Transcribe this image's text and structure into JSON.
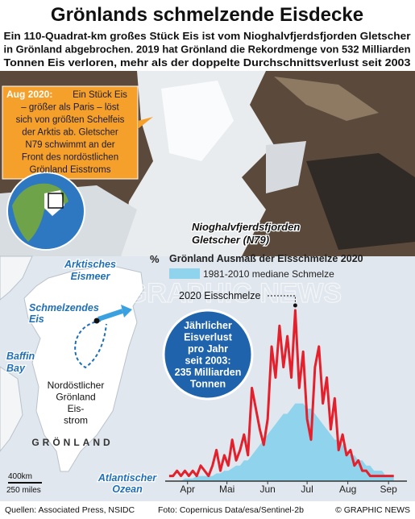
{
  "header": {
    "title": "Grönlands schmelzende Eisdecke",
    "subtitle_lines": [
      "Ein 110-Quadrat-km großes Stück Eis ist vom Nioghalvfjerdsfjorden Gletscher",
      "in Grönland abgebrochen. 2019 hat Grönland die Rekordmenge von  532 Milliarden",
      "Tonnen Eis verloren, mehr als der doppelte Durchschnittsverlust seit 2003"
    ]
  },
  "photo": {
    "callout_label": "Aug 2020:",
    "callout_lines": [
      "Ein Stück Eis",
      "– größer als Paris – löst",
      "sich von größten Schelfeis",
      "der Arktis ab. Gletscher",
      "N79 schwimmt an der",
      "Front des nordöstlichen",
      "Grönland Eisstroms"
    ],
    "glacier_lines": [
      "Nioghalvfjerdsfjorden",
      "Gletscher (N79)"
    ]
  },
  "map": {
    "arctic_lines": [
      "Arktisches",
      "Eismeer"
    ],
    "melting_lines": [
      "Schmelzendes",
      "Eis"
    ],
    "baffin_lines": [
      "Baffin",
      "Bay"
    ],
    "stream_lines": [
      "Nordöstlicher",
      "Grönland",
      "Eis-",
      "strom"
    ],
    "country": "GRÖNLAND",
    "atlantic_lines": [
      "Atlantischer",
      "Ozean"
    ],
    "scale_km": "400km",
    "scale_miles": "250 miles"
  },
  "chart_data": {
    "type": "line",
    "title": "Grönland Ausmaß der Eisschmelze 2020",
    "y_label": "%",
    "watermark": "GRAPHIC NEWS",
    "x": [
      91,
      94,
      97,
      100,
      103,
      106,
      109,
      112,
      115,
      118,
      121,
      124,
      127,
      130,
      133,
      136,
      139,
      142,
      145,
      148,
      151,
      154,
      157,
      160,
      163,
      166,
      169,
      172,
      175,
      178,
      181,
      184,
      187,
      190,
      193,
      196,
      199,
      202,
      205,
      208,
      211,
      214,
      217,
      220,
      223,
      226,
      229,
      232,
      235,
      238,
      241,
      244,
      247,
      250,
      253,
      256,
      259,
      262
    ],
    "xlim": [
      88,
      272
    ],
    "xticks": [
      {
        "value": 105,
        "label": "Apr"
      },
      {
        "value": 135,
        "label": "Mai"
      },
      {
        "value": 166,
        "label": "Jun"
      },
      {
        "value": 196,
        "label": "Jul"
      },
      {
        "value": 227,
        "label": "Aug"
      },
      {
        "value": 258,
        "label": "Sep"
      }
    ],
    "ylim": [
      0,
      40
    ],
    "series": [
      {
        "name": "1981-2010 mediane Schmelze",
        "color": "#8fd3ec",
        "style": "area",
        "values": [
          0,
          0,
          0,
          0,
          0.5,
          0.5,
          0.5,
          1,
          1,
          1,
          1,
          1,
          1.5,
          1.5,
          2,
          2,
          2.5,
          3,
          3,
          4,
          4,
          5,
          6,
          7,
          8,
          9,
          10,
          11,
          12,
          13,
          13,
          14,
          15,
          15,
          15,
          14,
          14,
          13,
          12,
          11,
          10,
          9,
          8,
          8,
          7,
          6,
          5,
          5,
          4,
          4,
          3,
          3,
          2,
          2,
          2,
          1,
          1,
          1
        ]
      },
      {
        "name": "2020 Eisschmelze",
        "color": "#e3202b",
        "style": "line",
        "values": [
          1,
          1,
          2,
          1,
          2,
          1,
          2,
          1,
          3,
          2,
          1,
          3,
          6,
          2,
          5,
          3,
          8,
          4,
          6,
          9,
          5,
          18,
          14,
          10,
          7,
          12,
          26,
          20,
          30,
          22,
          28,
          20,
          33,
          18,
          25,
          12,
          8,
          22,
          26,
          15,
          20,
          10,
          16,
          6,
          9,
          5,
          6,
          3,
          4,
          2,
          2,
          1,
          1,
          1,
          1,
          1,
          1,
          1
        ]
      }
    ],
    "bubble_lines": [
      "Jährlicher",
      "Eisverlust",
      "pro Jahr",
      "seit 2003:",
      "235 Milliarden",
      "Tonnen"
    ]
  },
  "footer": {
    "sources": "Quellen: Associated Press, NSIDC",
    "photo": "Foto: Copernicus Data/esa/Sentinel-2b",
    "credit": "© GRAPHIC NEWS"
  }
}
